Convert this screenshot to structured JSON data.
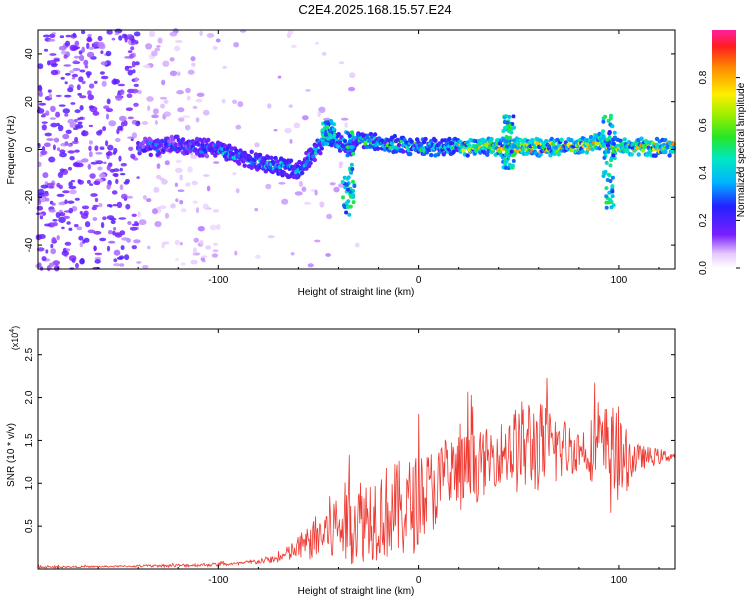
{
  "title": "C2E4.2025.168.15.57.E24",
  "chart_data": [
    {
      "type": "heatmap",
      "xlabel": "Height of straight line (km)",
      "ylabel": "Frequency (Hz)",
      "xlim": [
        -190,
        128
      ],
      "ylim": [
        -50,
        50
      ],
      "xticks": [
        -100,
        0,
        100
      ],
      "xtick_labels": [
        "-100",
        "0",
        "100"
      ],
      "yticks": [
        -40,
        -20,
        0,
        20,
        40
      ],
      "ytick_labels": [
        "-40",
        "-20",
        "0",
        "20",
        "40"
      ],
      "grid": false,
      "ridge": {
        "description_x": [
          -135,
          -120,
          -100,
          -80,
          -60,
          -45,
          -40,
          -35,
          -30,
          -20,
          0,
          20,
          40,
          60,
          80,
          90,
          100,
          128
        ],
        "frequency_hz": [
          1,
          2,
          0,
          -5,
          -9,
          6,
          3,
          0,
          5,
          3,
          1,
          1,
          1,
          1,
          1,
          3,
          1,
          1
        ]
      },
      "colorbar": {
        "label": "Normalized spectral amplitude",
        "range": [
          0,
          1
        ],
        "ticks": [
          0.0,
          0.2,
          0.4,
          0.6,
          0.8
        ],
        "tick_labels": [
          "0.0",
          "0.2",
          "0.4",
          "0.6",
          "0.8"
        ]
      }
    },
    {
      "type": "line",
      "xlabel": "Height of straight line (km)",
      "ylabel": "SNR (10 * v/v)",
      "y_multiplier": "(x10",
      "y_multiplier_exp": "4",
      "y_multiplier_close": ")",
      "xlim": [
        -190,
        128
      ],
      "ylim": [
        0,
        2.8
      ],
      "xticks": [
        -100,
        0,
        100
      ],
      "xtick_labels": [
        "-100",
        "0",
        "100"
      ],
      "yticks": [
        0.5,
        1.0,
        1.5,
        2.0,
        2.5
      ],
      "ytick_labels": [
        "0.5",
        "1.0",
        "1.5",
        "2.0",
        "2.5"
      ],
      "color": "#ee3a32",
      "envelope": {
        "x": [
          -190,
          -150,
          -120,
          -90,
          -70,
          -55,
          -45,
          -35,
          -20,
          -5,
          5,
          20,
          30,
          40,
          50,
          55,
          65,
          80,
          92,
          96,
          100,
          110,
          128
        ],
        "mean": [
          0.02,
          0.03,
          0.04,
          0.06,
          0.12,
          0.3,
          0.45,
          0.55,
          0.65,
          0.7,
          0.9,
          1.1,
          1.2,
          1.35,
          1.4,
          1.45,
          1.4,
          1.4,
          1.4,
          1.3,
          1.25,
          1.3,
          1.32
        ],
        "spread": [
          0.01,
          0.01,
          0.02,
          0.02,
          0.05,
          0.2,
          0.4,
          0.5,
          0.55,
          0.6,
          0.5,
          0.5,
          0.4,
          0.35,
          0.55,
          0.6,
          0.5,
          0.25,
          0.5,
          0.7,
          0.5,
          0.15,
          0.05
        ]
      }
    }
  ]
}
